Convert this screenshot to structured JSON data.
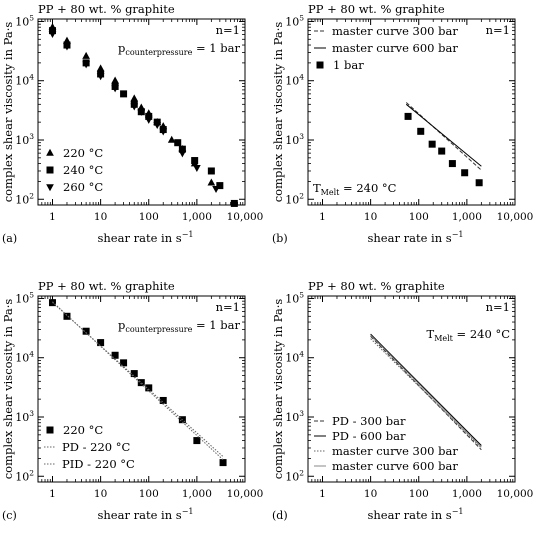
{
  "figure": {
    "ylabel": "complex shear viscosity in Pa·s",
    "xlabel": "shear rate in s",
    "xlabel_superscript": "−1",
    "xticks": [
      1,
      10,
      100,
      1000,
      10000
    ],
    "xtick_labels": [
      "1",
      "10",
      "100",
      "1,000",
      "10,000"
    ],
    "ytick_exponents": [
      2,
      3,
      4,
      5
    ],
    "ytick_base": "10"
  },
  "chart_data": [
    {
      "panel": "a",
      "panel_label": "(a)",
      "type": "scatter",
      "title": "PP + 80 wt. % graphite",
      "annotations": [
        {
          "text": "n=1"
        },
        {
          "text": "p",
          "sub": "counterpressure",
          "tail": " = 1 bar"
        }
      ],
      "xscale": "log",
      "yscale": "log",
      "xlim": [
        0.5,
        10000
      ],
      "ylim": [
        80,
        110000
      ],
      "legend_position": "bottom-left",
      "series": [
        {
          "name": "220 °C",
          "marker": "triangle-up",
          "x": [
            1,
            2,
            5,
            10,
            20,
            50,
            70,
            100,
            150,
            200,
            300,
            500,
            900,
            2000
          ],
          "y": [
            80000,
            47000,
            26000,
            16000,
            10000,
            5000,
            3500,
            2800,
            2000,
            1700,
            1000,
            700,
            400,
            190
          ]
        },
        {
          "name": "240 °C",
          "marker": "square",
          "x": [
            1,
            2,
            5,
            10,
            20,
            30,
            50,
            70,
            100,
            150,
            200,
            400,
            500,
            900,
            2000,
            3000,
            6000
          ],
          "y": [
            70000,
            40000,
            20000,
            13000,
            8000,
            6000,
            4000,
            3000,
            2500,
            2000,
            1500,
            900,
            700,
            450,
            300,
            170,
            85
          ]
        },
        {
          "name": "260 °C",
          "marker": "triangle-down",
          "x": [
            1,
            2,
            5,
            10,
            20,
            50,
            70,
            100,
            150,
            200,
            500,
            1000,
            2500
          ],
          "y": [
            62000,
            38000,
            19000,
            12000,
            7500,
            3700,
            3000,
            2200,
            1800,
            1400,
            600,
            340,
            150
          ]
        }
      ]
    },
    {
      "panel": "b",
      "panel_label": "(b)",
      "type": "line",
      "title": "PP + 80 wt. % graphite",
      "annotations": [
        {
          "text": "n=1"
        },
        {
          "text": "T",
          "sub": "Melt",
          "tail": " = 240 °C"
        }
      ],
      "xscale": "log",
      "yscale": "log",
      "xlim": [
        0.5,
        10000
      ],
      "ylim": [
        80,
        110000
      ],
      "legend_position": "top-left",
      "series": [
        {
          "name": "master curve 300 bar",
          "style": "dashed",
          "x": [
            55,
            2000
          ],
          "y": [
            4300,
            310
          ]
        },
        {
          "name": "master curve 600 bar",
          "style": "solid",
          "x": [
            55,
            2000
          ],
          "y": [
            4000,
            360
          ]
        },
        {
          "name": "1 bar",
          "marker": "square",
          "x": [
            60,
            110,
            190,
            300,
            500,
            900,
            1800
          ],
          "y": [
            2500,
            1400,
            850,
            650,
            400,
            280,
            190
          ]
        }
      ]
    },
    {
      "panel": "c",
      "panel_label": "(c)",
      "type": "scatter",
      "title": "PP + 80 wt. % graphite",
      "annotations": [
        {
          "text": "n=1"
        },
        {
          "text": "p",
          "sub": "counterpressure",
          "tail": " = 1 bar"
        }
      ],
      "xscale": "log",
      "yscale": "log",
      "xlim": [
        0.5,
        10000
      ],
      "ylim": [
        80,
        110000
      ],
      "legend_position": "bottom-left",
      "series": [
        {
          "name": "220 °C",
          "marker": "square",
          "x": [
            1,
            2,
            5,
            10,
            20,
            30,
            50,
            70,
            100,
            200,
            500,
            1000,
            3500
          ],
          "y": [
            85000,
            50000,
            28000,
            18000,
            11000,
            8200,
            5400,
            3800,
            3100,
            1900,
            900,
            400,
            170
          ]
        },
        {
          "name": "PD - 220 °C",
          "style": "dotted",
          "x": [
            1,
            3500
          ],
          "y": [
            88000,
            190
          ]
        },
        {
          "name": "PID - 220 °C",
          "style": "dotted",
          "x": [
            1,
            3500
          ],
          "y": [
            86000,
            215
          ]
        }
      ]
    },
    {
      "panel": "d",
      "panel_label": "(d)",
      "type": "line",
      "title": "PP + 80 wt. % graphite",
      "annotations": [
        {
          "text": "n=1"
        },
        {
          "text": "T",
          "sub": "Melt",
          "tail": " = 240 °C"
        }
      ],
      "xscale": "log",
      "yscale": "log",
      "xlim": [
        0.5,
        10000
      ],
      "ylim": [
        80,
        110000
      ],
      "legend_position": "bottom-left",
      "series": [
        {
          "name": "PD - 300 bar",
          "style": "dashed",
          "x": [
            10,
            2000
          ],
          "y": [
            23000,
            280
          ]
        },
        {
          "name": "PD - 600 bar",
          "style": "solid",
          "x": [
            10,
            2000
          ],
          "y": [
            25000,
            330
          ]
        },
        {
          "name": "master curve 300 bar",
          "style": "dotted",
          "x": [
            10,
            2000
          ],
          "y": [
            21000,
            300
          ]
        },
        {
          "name": "master curve 600 bar",
          "style": "solid-light",
          "x": [
            10,
            2000
          ],
          "y": [
            24000,
            310
          ]
        }
      ]
    }
  ]
}
